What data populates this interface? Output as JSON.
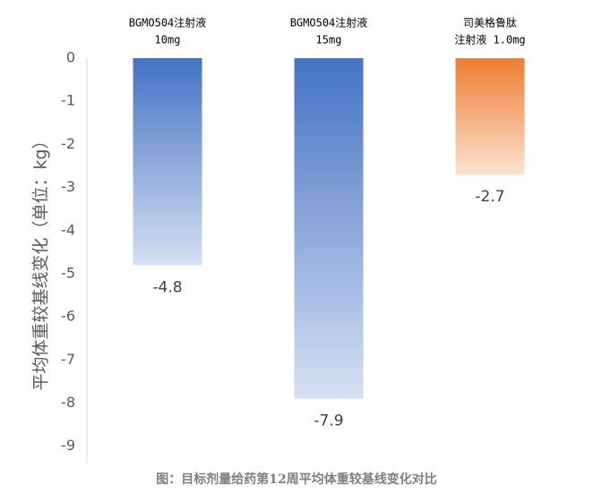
{
  "chart_data": {
    "type": "bar",
    "title": "图：目标剂量给药第12周平均体重较基线变化对比",
    "y_label": "平均体重较基线变化（单位：kg）",
    "categories": [
      [
        "BGMO504注射液",
        "10mg"
      ],
      [
        "BGMO504注射液",
        "15mg"
      ],
      [
        "司美格鲁肽",
        "注射液 1.0mg"
      ]
    ],
    "values": [
      -4.8,
      -7.9,
      -2.7
    ],
    "colors": [
      "#4472c4",
      "#4472c4",
      "#ed7d31"
    ],
    "ylim": [
      -9.4,
      0
    ],
    "yticks": [
      0,
      -1,
      -2,
      -3,
      -4,
      -5,
      -6,
      -7,
      -8,
      -9
    ]
  }
}
